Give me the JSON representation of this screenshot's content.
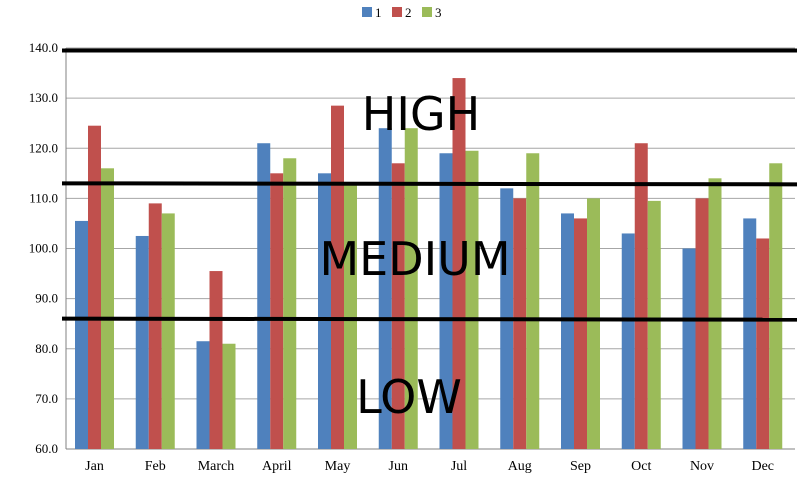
{
  "chart_data": {
    "type": "bar",
    "categories": [
      "Jan",
      "Feb",
      "March",
      "April",
      "May",
      "Jun",
      "Jul",
      "Aug",
      "Sep",
      "Oct",
      "Nov",
      "Dec"
    ],
    "series": [
      {
        "name": "1",
        "color": "#4F81BD",
        "values": [
          105.5,
          102.5,
          81.5,
          121.0,
          115.0,
          124.0,
          119.0,
          112.0,
          107.0,
          103.0,
          100.0,
          106.0
        ]
      },
      {
        "name": "2",
        "color": "#C0504D",
        "values": [
          124.5,
          109.0,
          95.5,
          115.0,
          128.5,
          117.0,
          134.0,
          110.0,
          106.0,
          121.0,
          110.0,
          102.0
        ]
      },
      {
        "name": "3",
        "color": "#9BBB59",
        "values": [
          116.0,
          107.0,
          81.0,
          118.0,
          113.0,
          124.0,
          119.5,
          119.0,
          110.0,
          109.5,
          114.0,
          117.0
        ]
      }
    ],
    "yticks": [
      "60.0",
      "70.0",
      "80.0",
      "90.0",
      "100.0",
      "110.0",
      "120.0",
      "130.0",
      "140.0"
    ],
    "ylim": [
      60,
      140
    ],
    "grid": true,
    "legend_position": "top",
    "zones": [
      {
        "label": "HIGH",
        "value_top": 140,
        "value_bottom": 113
      },
      {
        "label": "MEDIUM",
        "value_top": 113,
        "value_bottom": 86
      },
      {
        "label": "LOW",
        "value_top": 86,
        "value_bottom": 60
      }
    ],
    "threshold_lines": [
      139.5,
      113,
      86
    ]
  }
}
